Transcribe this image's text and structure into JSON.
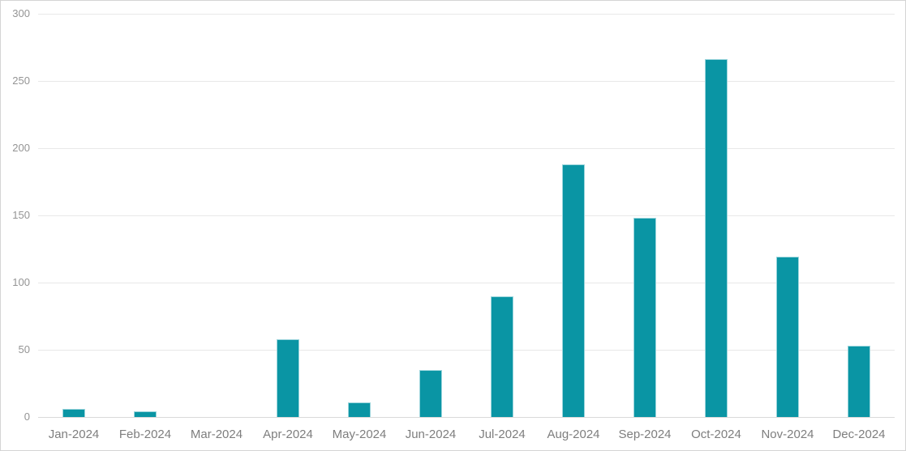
{
  "chart_data": {
    "type": "bar",
    "title": "",
    "xlabel": "",
    "ylabel": "",
    "categories": [
      "Jan-2024",
      "Feb-2024",
      "Mar-2024",
      "Apr-2024",
      "May-2024",
      "Jun-2024",
      "Jul-2024",
      "Aug-2024",
      "Sep-2024",
      "Oct-2024",
      "Nov-2024",
      "Dec-2024"
    ],
    "values": [
      6,
      4,
      0,
      58,
      11,
      35,
      90,
      188,
      148,
      266,
      119,
      53
    ],
    "ylim": [
      0,
      300
    ],
    "yticks": [
      0,
      50,
      100,
      150,
      200,
      250,
      300
    ],
    "grid": true,
    "legend": false,
    "colors": {
      "bar_fill": "#0a95a4",
      "bar_edge": "#9bd5dc",
      "gridline": "#e8e8e8",
      "axis_line": "#d9d9d9",
      "y_tick_label": "#949494",
      "x_tick_label": "#7e7e7e",
      "frame_border": "#d4d4d4",
      "background": "#ffffff"
    }
  }
}
